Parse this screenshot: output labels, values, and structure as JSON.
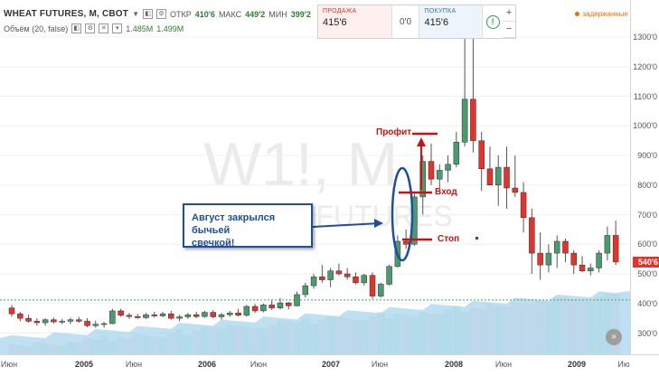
{
  "header": {
    "symbol": "WHEAT FUTURES, M, CBOT",
    "open_label": "ОТКР",
    "open_value": "410'6",
    "high_label": "МАКС",
    "high_value": "449'2",
    "low_label": "МИН",
    "low_value": "399'2",
    "volume_label": "Объём (20, false)",
    "volume_value1": "1.485M",
    "volume_value2": "1.499M"
  },
  "trade_widget": {
    "sell_label": "ПРОДАЖА",
    "sell_price": "415'6",
    "spread": "0'0",
    "buy_label": "ПОКУПКА",
    "buy_price": "415'6",
    "plus": "+",
    "minus": "−"
  },
  "status": {
    "delayed_label": "задержанные"
  },
  "watermark": {
    "symbol_text": "W1!, M",
    "name_text": "WHEAT FUTURES"
  },
  "callout": {
    "line1": "Август закрылся бычьей",
    "line2": "свечкой!"
  },
  "annotations": {
    "profit": "Профит",
    "entry": "Вход",
    "stop": "Стоп"
  },
  "last_price": {
    "value": 540.75,
    "label": "540'6",
    "color": "#e0342c"
  },
  "colors": {
    "up": "#4c9a6f",
    "down": "#e0342c",
    "volume": "#a8d6ee",
    "arrow": "#1f4e9c",
    "annotation": "#cc1111"
  },
  "icons": {
    "settings": "gear-icon",
    "scroll": "chevron-right-icon",
    "info": "info-icon"
  },
  "chart_data": {
    "type": "candlestick",
    "y_axis": {
      "ticks": [
        300,
        400,
        500,
        600,
        700,
        800,
        900,
        1000,
        1100,
        1200,
        1300
      ],
      "tick_labels": [
        "300'0",
        "400'0",
        "500'0",
        "600'0",
        "700'0",
        "800'0",
        "900'0",
        "1000'0",
        "1100'0",
        "1200'0",
        "1300'0"
      ],
      "range": [
        230,
        1340
      ]
    },
    "x_axis": {
      "tick_labels": [
        "Июн",
        "2005",
        "Июн",
        "2006",
        "Июн",
        "2007",
        "Июн",
        "2008",
        "Июн",
        "2009",
        "Ию"
      ]
    },
    "reference_line": 412,
    "candles_start": "2004-05",
    "candles": [
      [
        385,
        395,
        355,
        365
      ],
      [
        365,
        372,
        340,
        350
      ],
      [
        350,
        362,
        335,
        340
      ],
      [
        340,
        350,
        325,
        335
      ],
      [
        335,
        350,
        325,
        345
      ],
      [
        345,
        352,
        332,
        338
      ],
      [
        338,
        348,
        330,
        340
      ],
      [
        340,
        352,
        330,
        345
      ],
      [
        345,
        355,
        335,
        340
      ],
      [
        340,
        350,
        320,
        325
      ],
      [
        325,
        342,
        318,
        330
      ],
      [
        330,
        338,
        318,
        332
      ],
      [
        332,
        382,
        330,
        375
      ],
      [
        375,
        382,
        355,
        360
      ],
      [
        360,
        368,
        348,
        356
      ],
      [
        356,
        365,
        348,
        352
      ],
      [
        352,
        368,
        348,
        362
      ],
      [
        362,
        372,
        352,
        358
      ],
      [
        358,
        372,
        354,
        365
      ],
      [
        365,
        375,
        345,
        350
      ],
      [
        350,
        362,
        340,
        355
      ],
      [
        355,
        368,
        348,
        362
      ],
      [
        362,
        372,
        350,
        356
      ],
      [
        356,
        375,
        352,
        370
      ],
      [
        370,
        378,
        350,
        355
      ],
      [
        355,
        368,
        345,
        362
      ],
      [
        362,
        375,
        355,
        368
      ],
      [
        368,
        382,
        356,
        360
      ],
      [
        360,
        395,
        355,
        390
      ],
      [
        390,
        398,
        368,
        375
      ],
      [
        375,
        400,
        370,
        395
      ],
      [
        395,
        410,
        378,
        385
      ],
      [
        385,
        418,
        380,
        402
      ],
      [
        402,
        405,
        380,
        392
      ],
      [
        392,
        440,
        390,
        430
      ],
      [
        430,
        470,
        420,
        460
      ],
      [
        460,
        500,
        450,
        490
      ],
      [
        490,
        530,
        470,
        480
      ],
      [
        480,
        520,
        455,
        510
      ],
      [
        510,
        535,
        495,
        500
      ],
      [
        500,
        520,
        480,
        490
      ],
      [
        490,
        505,
        465,
        470
      ],
      [
        470,
        500,
        460,
        495
      ],
      [
        495,
        505,
        415,
        425
      ],
      [
        425,
        470,
        420,
        465
      ],
      [
        465,
        530,
        460,
        525
      ],
      [
        525,
        630,
        520,
        610
      ],
      [
        610,
        650,
        585,
        600
      ],
      [
        600,
        770,
        595,
        760
      ],
      [
        760,
        900,
        700,
        880
      ],
      [
        880,
        940,
        800,
        820
      ],
      [
        820,
        870,
        790,
        850
      ],
      [
        850,
        900,
        810,
        870
      ],
      [
        870,
        980,
        860,
        945
      ],
      [
        945,
        1360,
        930,
        1090
      ],
      [
        1090,
        1300,
        910,
        950
      ],
      [
        950,
        980,
        780,
        855
      ],
      [
        855,
        930,
        800,
        800
      ],
      [
        800,
        900,
        730,
        860
      ],
      [
        860,
        930,
        720,
        790
      ],
      [
        790,
        900,
        760,
        775
      ],
      [
        775,
        810,
        640,
        690
      ],
      [
        690,
        720,
        500,
        570
      ],
      [
        570,
        640,
        480,
        530
      ],
      [
        530,
        600,
        505,
        570
      ],
      [
        570,
        630,
        520,
        610
      ],
      [
        610,
        620,
        540,
        570
      ],
      [
        570,
        580,
        500,
        530
      ],
      [
        530,
        560,
        505,
        510
      ],
      [
        510,
        535,
        495,
        520
      ],
      [
        520,
        580,
        505,
        570
      ],
      [
        570,
        660,
        545,
        630
      ],
      [
        630,
        680,
        530,
        540
      ]
    ],
    "volume_max": 1500000
  }
}
